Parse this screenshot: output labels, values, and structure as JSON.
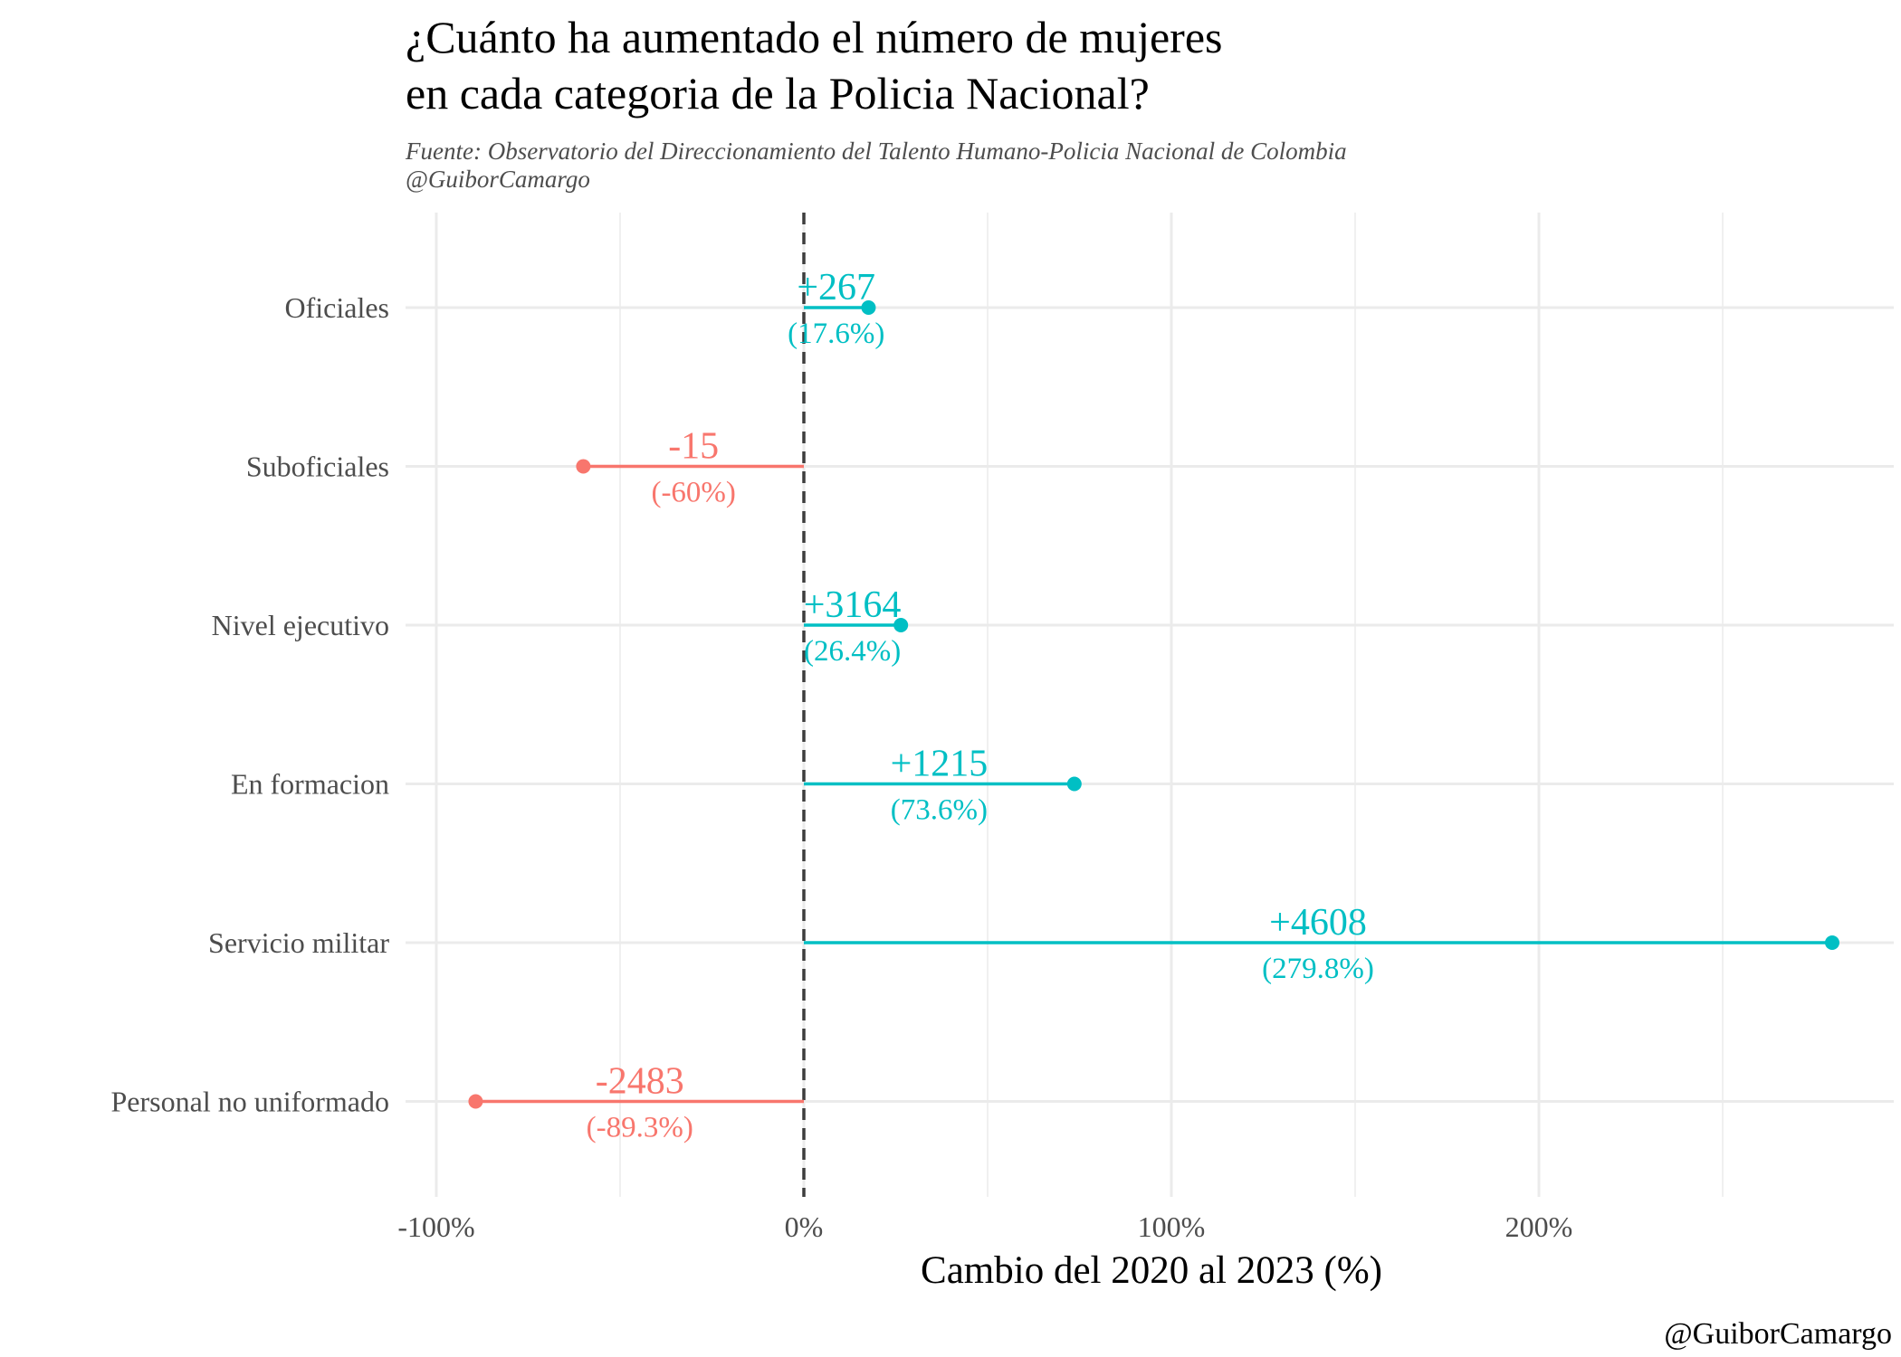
{
  "chart_data": {
    "type": "lollipop",
    "title_lines": [
      "¿Cuánto ha aumentado el número de mujeres",
      "en cada categoria de la Policia Nacional?"
    ],
    "subtitle_lines": [
      "Fuente: Observatorio del Direccionamiento del Talento Humano-Policia Nacional de Colombia",
      "@GuiborCamargo"
    ],
    "xlabel": "Cambio del 2020 al 2023 (%)",
    "caption": "@GuiborCamargo",
    "xlim": [
      -100,
      295
    ],
    "x_ticks": [
      -100,
      0,
      100,
      200
    ],
    "x_tick_labels": [
      "-100%",
      "0%",
      "100%",
      "200%"
    ],
    "reference_line": 0,
    "grid": true,
    "colors": {
      "positive": "#00BFC4",
      "negative": "#F8766D"
    },
    "items": [
      {
        "category": "Oficiales",
        "pct": 17.6,
        "abs_label": "+267",
        "pct_label": "(17.6%)"
      },
      {
        "category": "Suboficiales",
        "pct": -60,
        "abs_label": "-15",
        "pct_label": "(-60%)"
      },
      {
        "category": "Nivel ejecutivo",
        "pct": 26.4,
        "abs_label": "+3164",
        "pct_label": "(26.4%)"
      },
      {
        "category": "En formacion",
        "pct": 73.6,
        "abs_label": "+1215",
        "pct_label": "(73.6%)"
      },
      {
        "category": "Servicio militar",
        "pct": 279.8,
        "abs_label": "+4608",
        "pct_label": "(279.8%)"
      },
      {
        "category": "Personal no uniformado",
        "pct": -89.3,
        "abs_label": "-2483",
        "pct_label": "(-89.3%)"
      }
    ]
  }
}
